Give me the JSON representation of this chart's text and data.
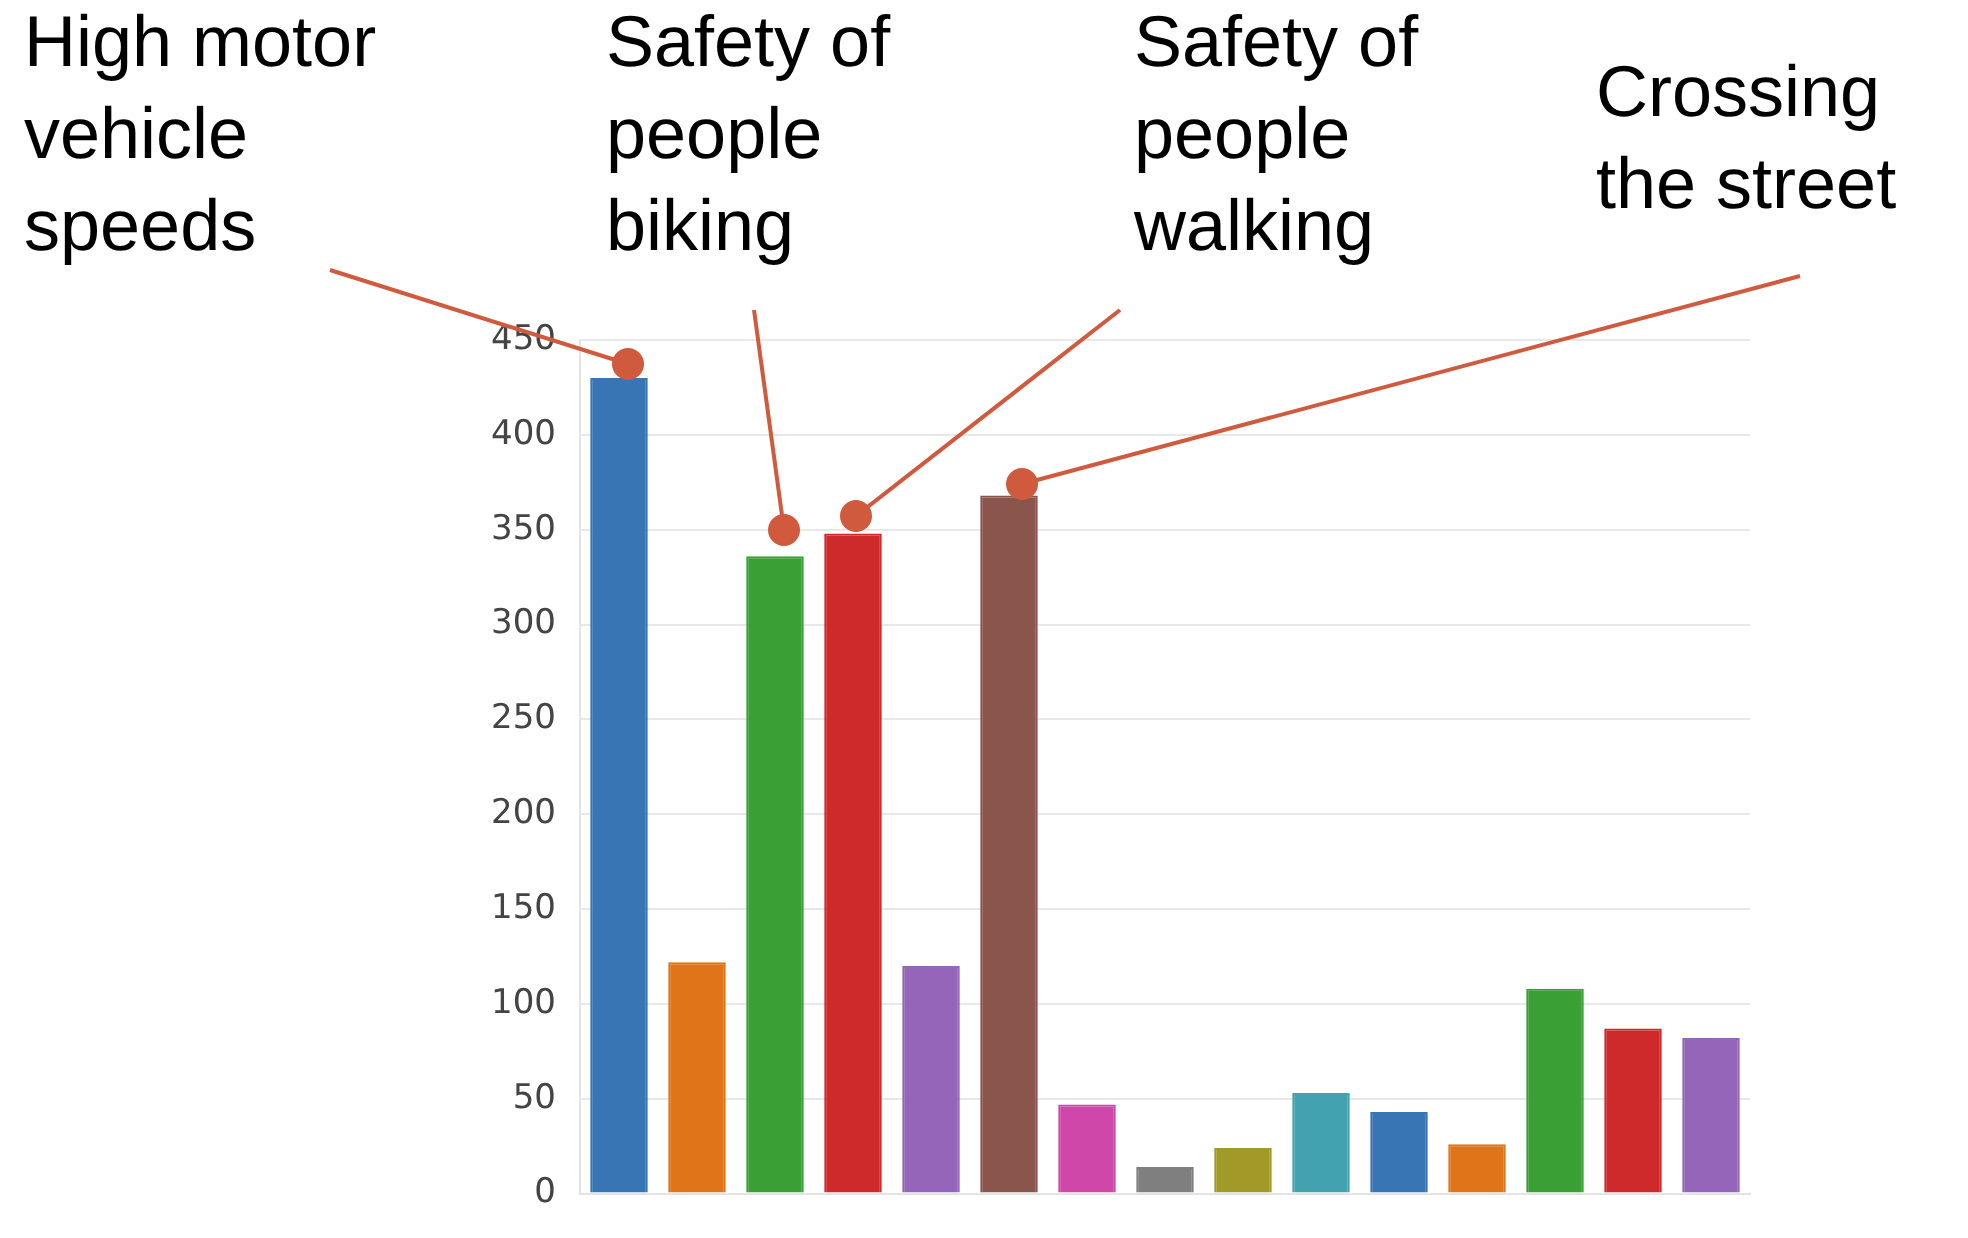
{
  "chart_data": {
    "type": "bar",
    "categories": [
      null,
      null,
      null,
      null,
      null,
      null,
      null,
      null,
      null,
      null,
      null,
      null,
      null,
      null,
      null
    ],
    "values": [
      430,
      122,
      336,
      348,
      120,
      368,
      47,
      14,
      24,
      53,
      43,
      26,
      108,
      87,
      82
    ],
    "colors": [
      "#3775b4",
      "#e07418",
      "#3a9f34",
      "#cf2a2b",
      "#9565b9",
      "#8a564c",
      "#cf47a8",
      "#7f7f7f",
      "#a29a28",
      "#43a2b0",
      "#3775b4",
      "#e07418",
      "#3a9f34",
      "#cf2a2b",
      "#9565b9"
    ],
    "ylim": [
      0,
      450
    ],
    "yticks": [
      0,
      50,
      100,
      150,
      200,
      250,
      300,
      350,
      400,
      450
    ],
    "grid": "y",
    "tick_labels": "y",
    "annotations": [
      "High motor vehicle speeds",
      "Safety of people biking",
      "Safety of people walking",
      "Crossing the street"
    ]
  }
}
